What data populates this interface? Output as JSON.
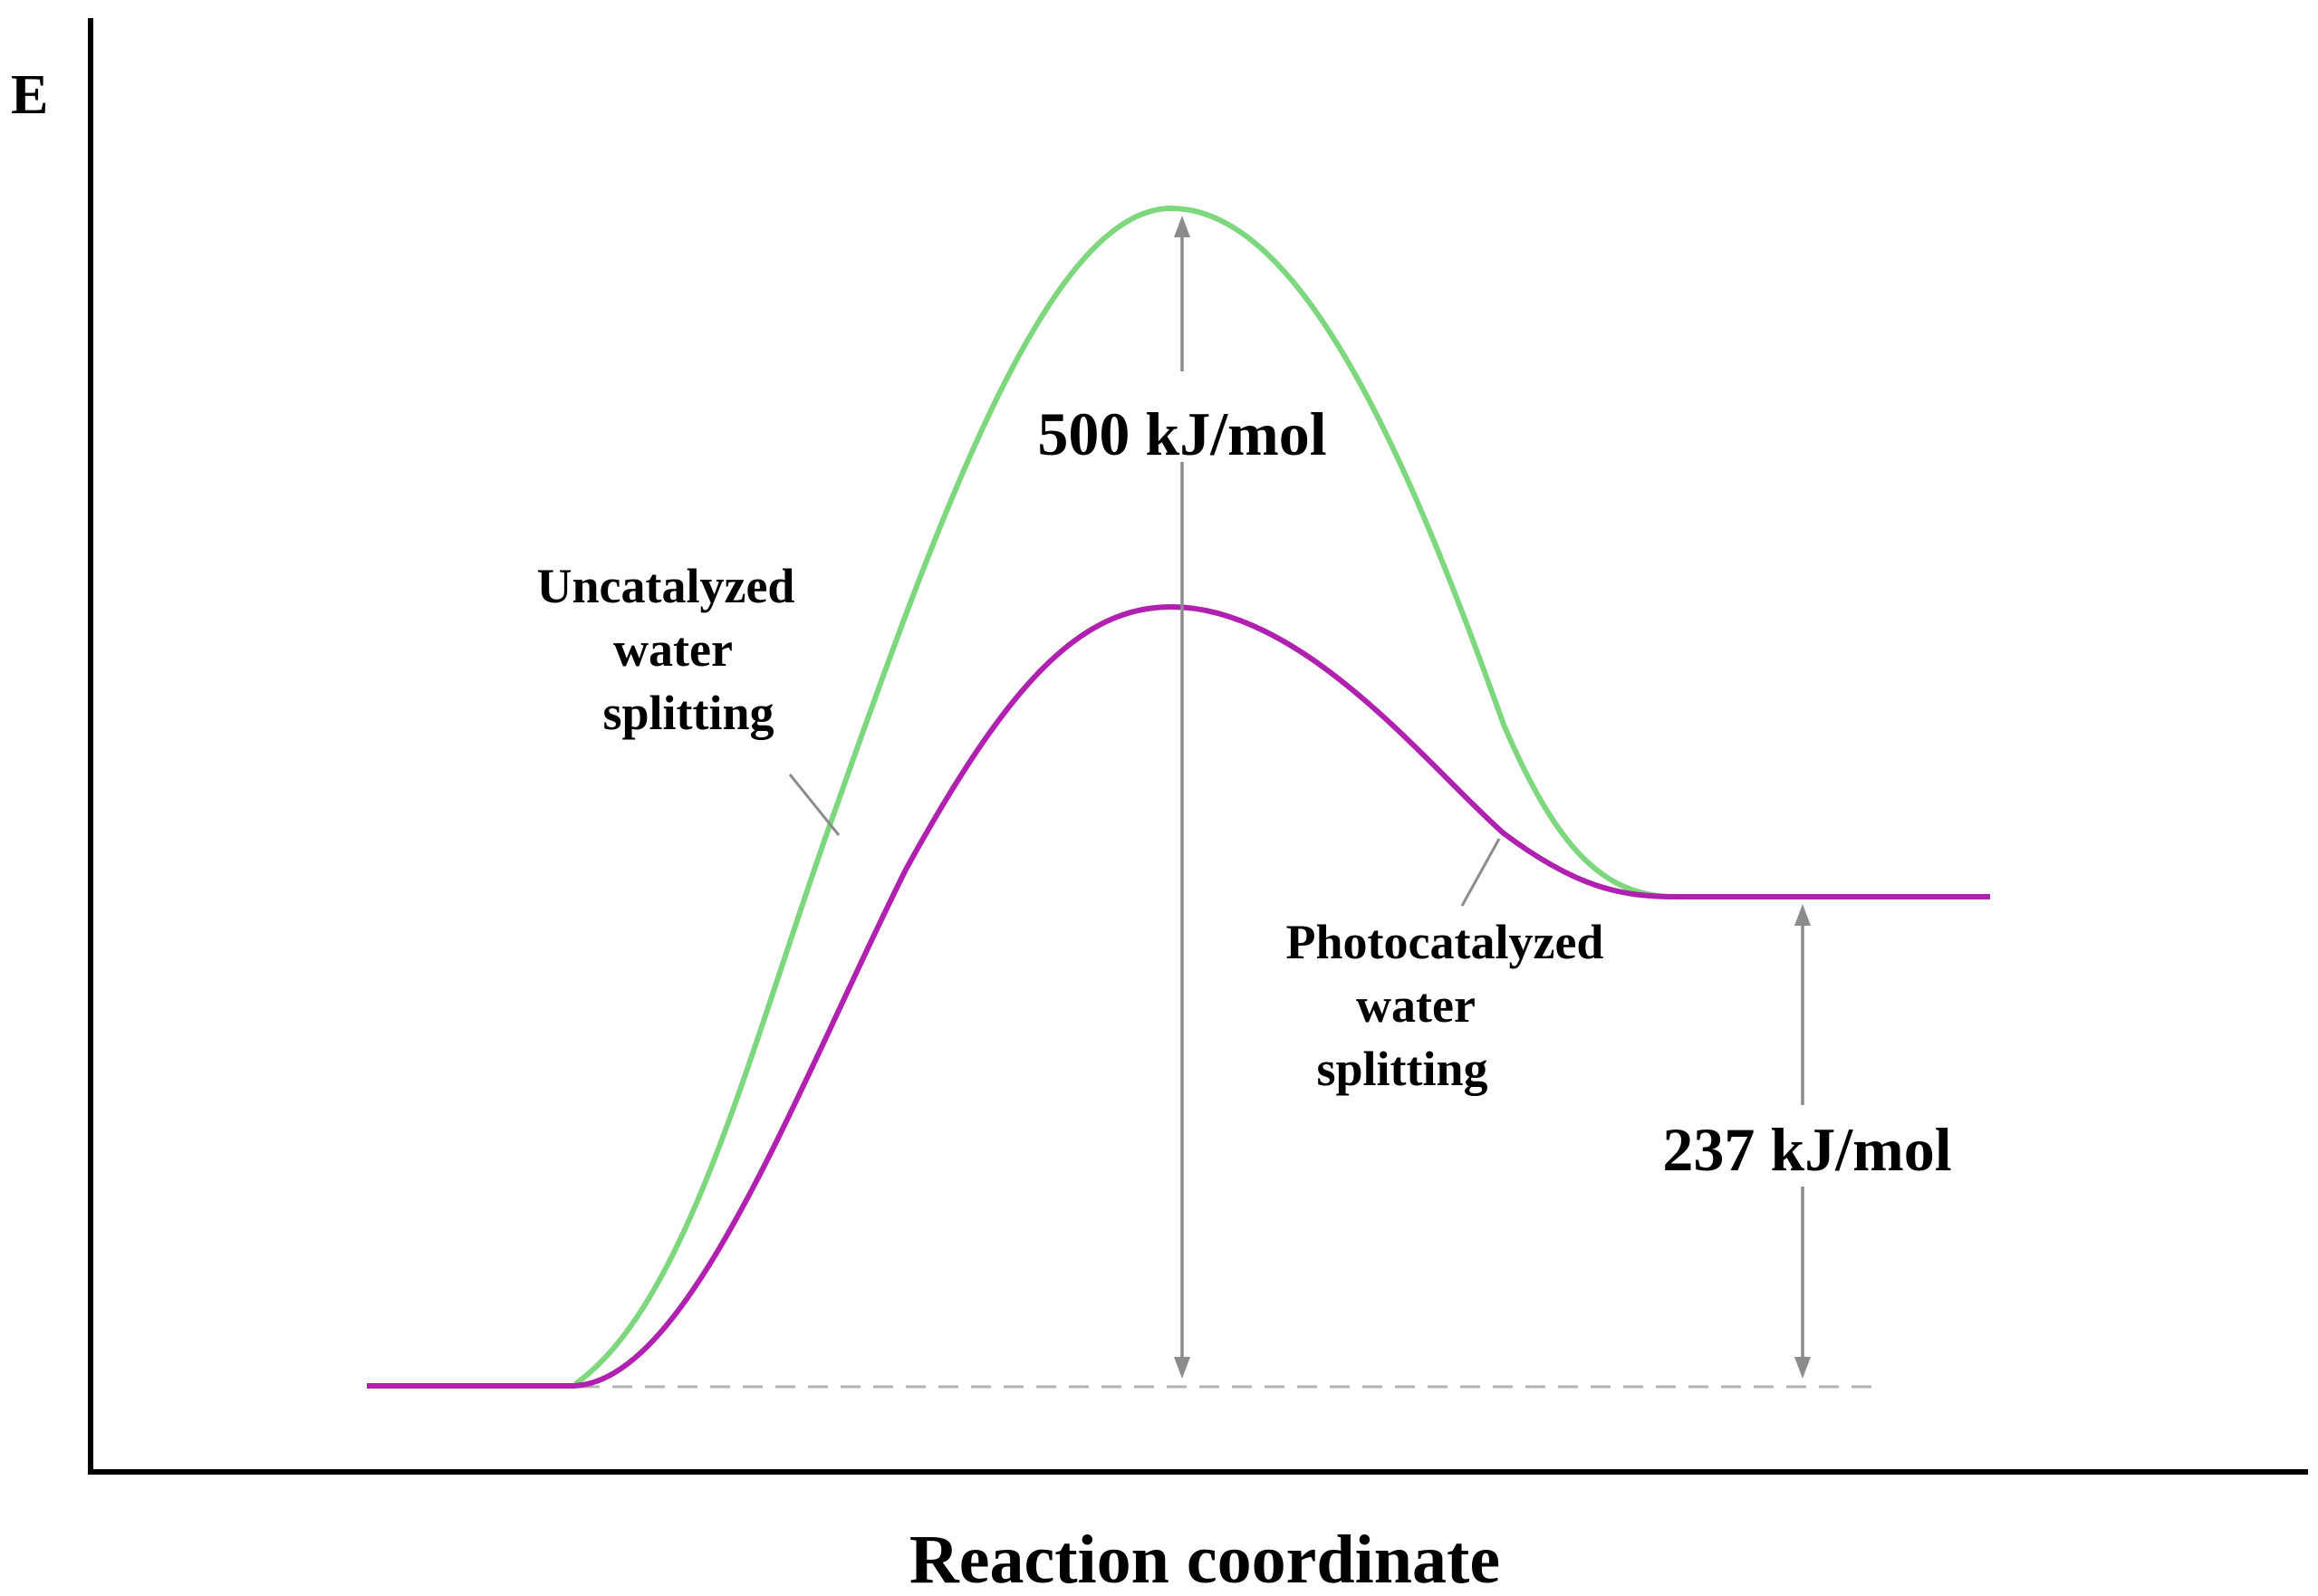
{
  "diagram": {
    "y_axis_label": "E",
    "x_axis_label": "Reaction coordinate",
    "curves": {
      "uncatalyzed": {
        "label_lines": [
          "Uncatalyzed",
          "water",
          "splitting"
        ],
        "color": "#7dd77d",
        "activation_energy_label": "500 kJ/mol",
        "activation_energy_kj_mol": 500
      },
      "photocatalyzed": {
        "label_lines": [
          "Photocatalyzed",
          "water",
          "splitting"
        ],
        "color": "#b021b0"
      }
    },
    "reaction_energy_label": "237 kJ/mol",
    "reaction_energy_kj_mol": 237,
    "arrow_color": "#8c8c8c",
    "axis_color": "#000000"
  }
}
